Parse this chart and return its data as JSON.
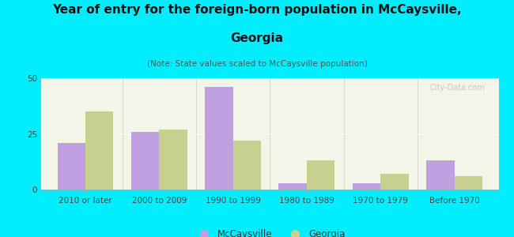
{
  "title_line1": "Year of entry for the foreign-born population in McCaysville,",
  "title_line2": "Georgia",
  "subtitle": "(Note: State values scaled to McCaysville population)",
  "categories": [
    "2010 or later",
    "2000 to 2009",
    "1990 to 1999",
    "1980 to 1989",
    "1970 to 1979",
    "Before 1970"
  ],
  "mccaysville_values": [
    21,
    26,
    46,
    3,
    3,
    13
  ],
  "georgia_values": [
    35,
    27,
    22,
    13,
    7,
    6
  ],
  "mccaysville_color": "#bf9fdf",
  "georgia_color": "#c8d090",
  "background_color": "#00eeff",
  "plot_bg_color": "#f2f5e8",
  "ylim": [
    0,
    50
  ],
  "yticks": [
    0,
    25,
    50
  ],
  "bar_width": 0.38,
  "legend_mccaysville": "McCaysville",
  "legend_georgia": "Georgia",
  "watermark": "City-Data.com",
  "title_fontsize": 11,
  "subtitle_fontsize": 7.5,
  "axis_fontsize": 7.5,
  "legend_fontsize": 8.5
}
